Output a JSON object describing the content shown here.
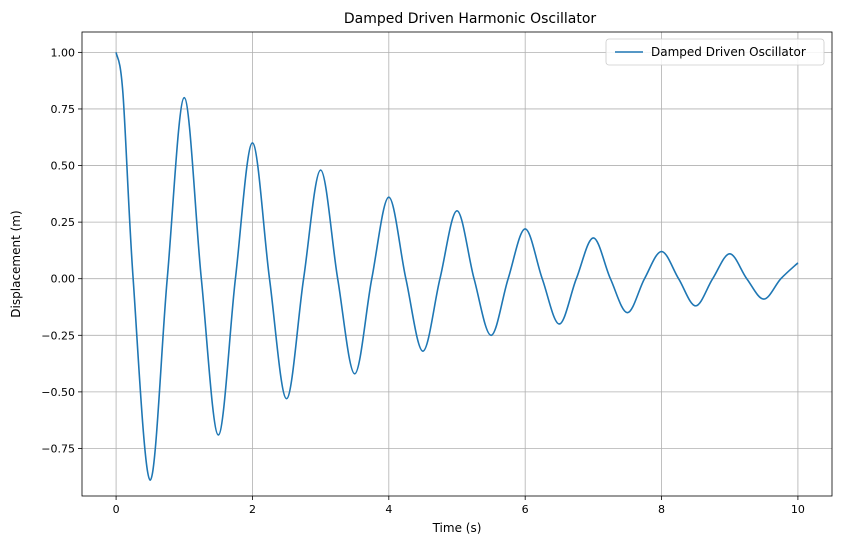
{
  "chart_data": {
    "type": "line",
    "title": "Damped Driven Harmonic Oscillator",
    "xlabel": "Time (s)",
    "ylabel": "Displacement (m)",
    "xlim": [
      -0.5,
      10.5
    ],
    "ylim": [
      -0.96,
      1.09
    ],
    "x_ticks": [
      0,
      2,
      4,
      6,
      8,
      10
    ],
    "x_tick_labels": [
      "0",
      "2",
      "4",
      "6",
      "8",
      "10"
    ],
    "y_ticks": [
      -0.75,
      -0.5,
      -0.25,
      0.0,
      0.25,
      0.5,
      0.75,
      1.0
    ],
    "y_tick_labels": [
      "−0.75",
      "−0.50",
      "−0.25",
      "0.00",
      "0.25",
      "0.50",
      "0.75",
      "1.00"
    ],
    "grid": true,
    "legend_position": "top-right",
    "series": [
      {
        "name": "Damped Driven Oscillator",
        "color": "#1f77b4",
        "x": [
          0,
          0.1,
          0.25,
          0.5,
          0.75,
          1.0,
          1.25,
          1.5,
          1.75,
          2.0,
          2.25,
          2.5,
          2.75,
          3.0,
          3.25,
          3.5,
          3.75,
          4.0,
          4.25,
          4.5,
          4.75,
          5.0,
          5.25,
          5.5,
          5.75,
          6.0,
          6.25,
          6.5,
          6.75,
          7.0,
          7.25,
          7.5,
          7.75,
          8.0,
          8.25,
          8.5,
          8.75,
          9.0,
          9.25,
          9.5,
          9.75,
          10.0
        ],
        "y": [
          1.0,
          0.82,
          0.0,
          -0.89,
          0.0,
          0.8,
          0.0,
          -0.69,
          0.0,
          0.6,
          0.0,
          -0.53,
          0.0,
          0.48,
          0.0,
          -0.42,
          0.0,
          0.36,
          0.0,
          -0.32,
          0.0,
          0.3,
          0.0,
          -0.25,
          0.0,
          0.22,
          0.0,
          -0.2,
          0.0,
          0.18,
          0.0,
          -0.15,
          0.0,
          0.12,
          0.0,
          -0.12,
          0.0,
          0.11,
          0.0,
          -0.09,
          0.0,
          0.07
        ]
      }
    ]
  }
}
